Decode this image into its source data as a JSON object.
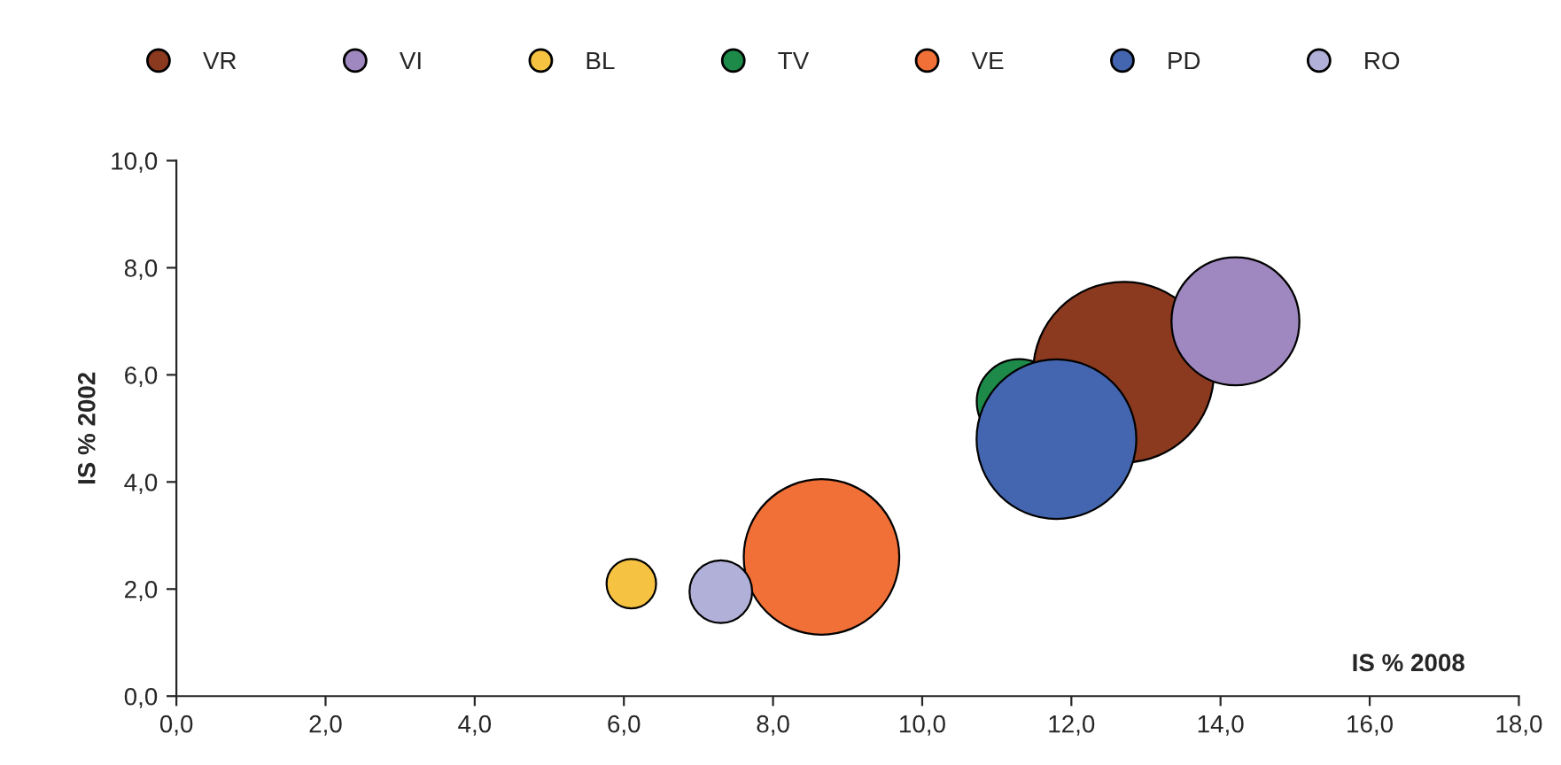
{
  "chart_data": {
    "type": "bubble",
    "xlabel": "IS % 2008",
    "ylabel": "IS % 2002",
    "xlim": [
      0,
      18
    ],
    "xticks": [
      {
        "value": 0,
        "label": "0,0"
      },
      {
        "value": 2,
        "label": "2,0"
      },
      {
        "value": 4,
        "label": "4,0"
      },
      {
        "value": 6,
        "label": "6,0"
      },
      {
        "value": 8,
        "label": "8,0"
      },
      {
        "value": 10,
        "label": "10,0"
      },
      {
        "value": 12,
        "label": "12,0"
      },
      {
        "value": 14,
        "label": "14,0"
      },
      {
        "value": 16,
        "label": "16,0"
      },
      {
        "value": 18,
        "label": "18,0"
      }
    ],
    "ylim": [
      0,
      10
    ],
    "yticks": [
      {
        "value": 0,
        "label": "0,0"
      },
      {
        "value": 2,
        "label": "2,0"
      },
      {
        "value": 4,
        "label": "4,0"
      },
      {
        "value": 6,
        "label": "6,0"
      },
      {
        "value": 8,
        "label": "8,0"
      },
      {
        "value": 10,
        "label": "10,0"
      }
    ],
    "grid": false,
    "legend": "top",
    "series": [
      {
        "name": "VR",
        "color": "#8b3a20",
        "x": [
          12.7
        ],
        "values": [
          6.05
        ],
        "sizes": [
          1
        ]
      },
      {
        "name": "VI",
        "color": "#9f88c0",
        "x": [
          14.2
        ],
        "values": [
          7.0
        ],
        "sizes": [
          0.5
        ]
      },
      {
        "name": "BL",
        "color": "#f5c242",
        "x": [
          6.1
        ],
        "values": [
          2.1
        ],
        "sizes": [
          0.075
        ]
      },
      {
        "name": "TV",
        "color": "#1e8a4a",
        "x": [
          11.3
        ],
        "values": [
          5.5
        ],
        "sizes": [
          0.22
        ]
      },
      {
        "name": "VE",
        "color": "#f07038",
        "x": [
          8.65
        ],
        "values": [
          2.6
        ],
        "sizes": [
          0.74
        ]
      },
      {
        "name": "PD",
        "color": "#4466b0",
        "x": [
          11.8
        ],
        "values": [
          4.8
        ],
        "sizes": [
          0.78
        ]
      },
      {
        "name": "RO",
        "color": "#b0b0d8",
        "x": [
          7.3
        ],
        "values": [
          1.95
        ],
        "sizes": [
          0.12
        ]
      }
    ]
  }
}
